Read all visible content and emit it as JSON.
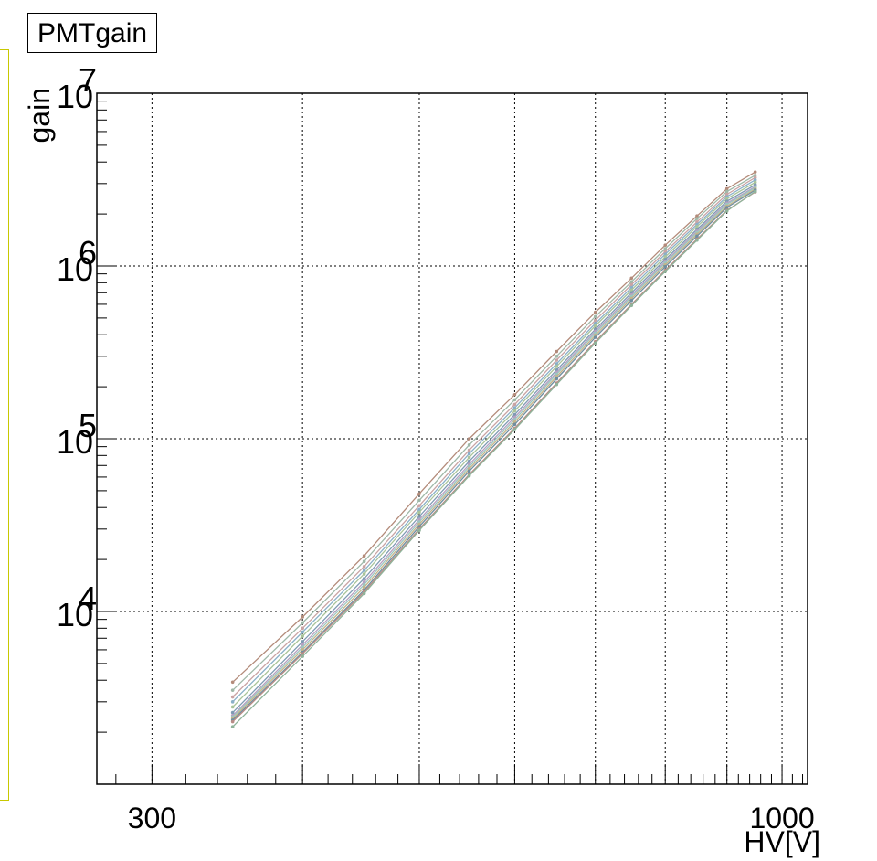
{
  "chart_data": {
    "type": "line",
    "title": "PMTgain",
    "xlabel": "HV[V]",
    "ylabel": "gain",
    "x_scale": "log",
    "y_scale": "log",
    "xlim": [
      270,
      1050
    ],
    "ylim": [
      1000,
      10000000
    ],
    "grid": true,
    "x_tick_labels": [
      {
        "value": 300,
        "text": "300"
      },
      {
        "value": 1000,
        "text": "1000"
      }
    ],
    "y_tick_labels": [
      {
        "value": 10000,
        "base": "10",
        "exp": "4"
      },
      {
        "value": 100000,
        "base": "10",
        "exp": "5"
      },
      {
        "value": 1000000,
        "base": "10",
        "exp": "6"
      },
      {
        "value": 10000000,
        "base": "10",
        "exp": "7"
      }
    ],
    "x_points": [
      350,
      400,
      450,
      500,
      550,
      600,
      650,
      700,
      750,
      800,
      850,
      900,
      950
    ],
    "series": [
      {
        "color": "#b38b7a",
        "values": [
          3900,
          9300,
          21000,
          48000,
          100000,
          180000,
          320000,
          540000,
          850000,
          1320000,
          1950000,
          2800000,
          3500000
        ]
      },
      {
        "color": "#9fb8a8",
        "values": [
          3500,
          8600,
          19500,
          44000,
          92000,
          168000,
          300000,
          510000,
          810000,
          1260000,
          1880000,
          2700000,
          3350000
        ]
      },
      {
        "color": "#c9a4a4",
        "values": [
          3200,
          8000,
          18200,
          41000,
          86000,
          158000,
          285000,
          485000,
          780000,
          1210000,
          1800000,
          2600000,
          3250000
        ]
      },
      {
        "color": "#8ab0c8",
        "values": [
          3000,
          7600,
          17300,
          39000,
          82000,
          151000,
          272000,
          465000,
          750000,
          1170000,
          1740000,
          2520000,
          3150000
        ]
      },
      {
        "color": "#a9c49b",
        "values": [
          2800,
          7200,
          16500,
          37500,
          78000,
          145000,
          262000,
          450000,
          725000,
          1130000,
          1690000,
          2450000,
          3050000
        ]
      },
      {
        "color": "#7e9ab3",
        "values": [
          2600,
          6700,
          15500,
          35500,
          74000,
          138000,
          250000,
          430000,
          700000,
          1090000,
          1630000,
          2370000,
          2950000
        ]
      },
      {
        "color": "#b6a0c2",
        "values": [
          2500,
          6400,
          14800,
          34000,
          71000,
          133000,
          242000,
          418000,
          680000,
          1060000,
          1590000,
          2310000,
          2880000
        ]
      },
      {
        "color": "#9cc7c0",
        "values": [
          2450,
          6200,
          14300,
          33000,
          69000,
          129000,
          236000,
          408000,
          665000,
          1040000,
          1560000,
          2270000,
          2840000
        ]
      },
      {
        "color": "#c4b48a",
        "values": [
          2400,
          6000,
          13800,
          32000,
          67000,
          125000,
          229000,
          397000,
          648000,
          1015000,
          1525000,
          2220000,
          2790000
        ]
      },
      {
        "color": "#6f8ea0",
        "values": [
          2350,
          5800,
          13300,
          31000,
          65000,
          121000,
          222000,
          386000,
          631000,
          990000,
          1490000,
          2180000,
          2750000
        ]
      },
      {
        "color": "#b88c86",
        "values": [
          2300,
          5700,
          13000,
          30000,
          62000,
          115000,
          210000,
          365000,
          600000,
          945000,
          1430000,
          2100000,
          2680000
        ]
      },
      {
        "color": "#8fb39a",
        "values": [
          2150,
          5500,
          12700,
          29500,
          61000,
          113000,
          206000,
          358000,
          590000,
          930000,
          1410000,
          2080000,
          2700000
        ]
      }
    ]
  }
}
